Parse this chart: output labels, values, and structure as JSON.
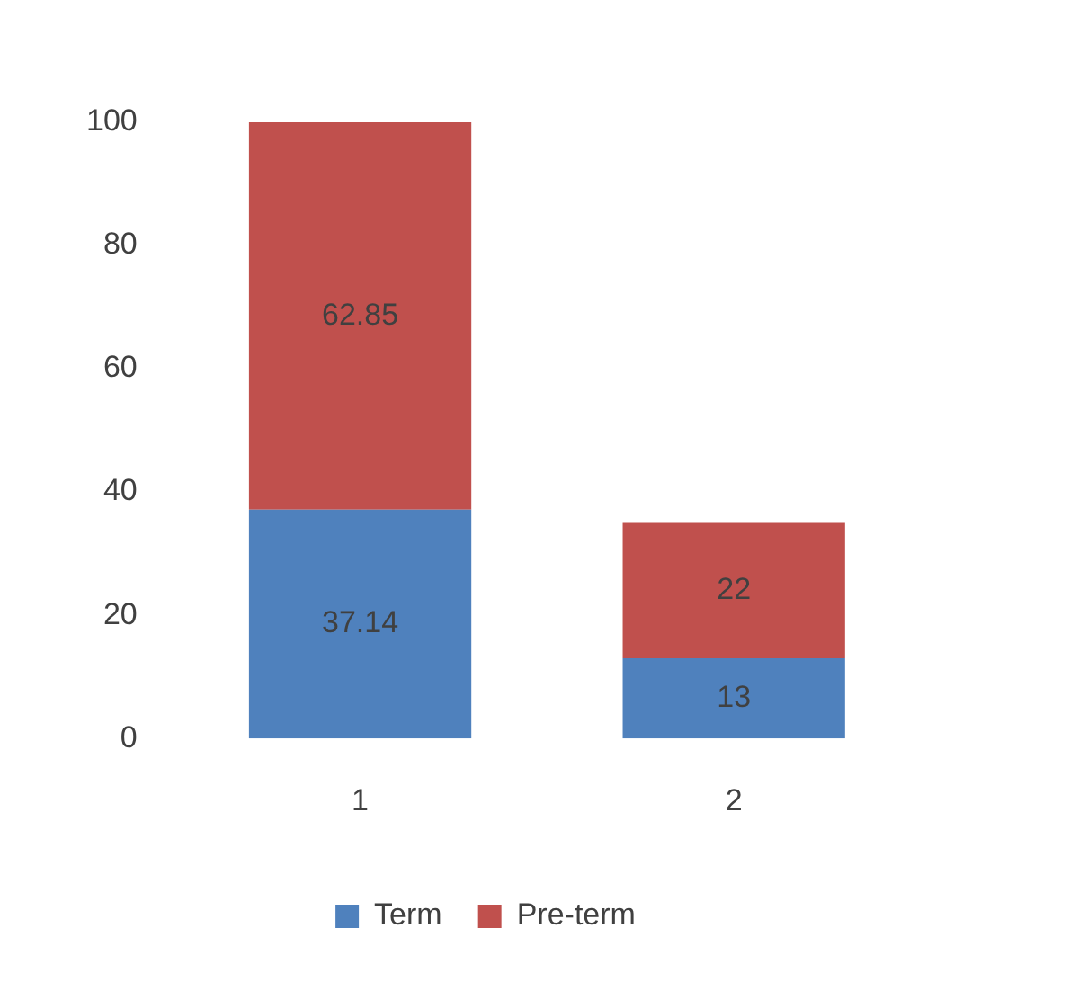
{
  "chart_data": {
    "type": "bar",
    "stacked": true,
    "categories": [
      "1",
      "2"
    ],
    "series": [
      {
        "name": "Term",
        "color": "#4f81bd",
        "values": [
          37.14,
          13
        ]
      },
      {
        "name": "Pre-term",
        "color": "#c0504d",
        "values": [
          62.85,
          22
        ]
      }
    ],
    "ylim": [
      0,
      100
    ],
    "yticks": [
      0,
      20,
      40,
      60,
      80,
      100
    ],
    "grid": false,
    "legend": "bottom",
    "data_labels": true
  }
}
